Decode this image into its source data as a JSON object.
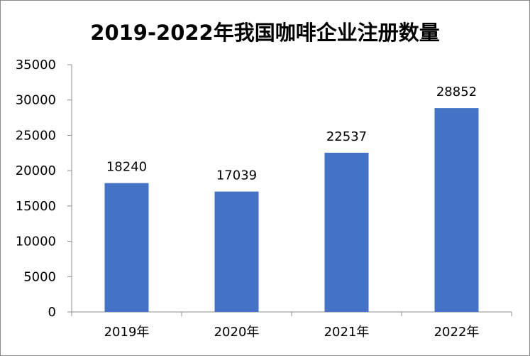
{
  "chart_data": {
    "type": "bar",
    "title": "2019-2022年我国咖啡企业注册数量",
    "categories": [
      "2019年",
      "2020年",
      "2021年",
      "2022年"
    ],
    "values": [
      18240,
      17039,
      22537,
      28852
    ],
    "data_labels": [
      "18240",
      "17039",
      "22537",
      "28852"
    ],
    "y_ticks": [
      "0",
      "5000",
      "10000",
      "15000",
      "20000",
      "25000",
      "30000",
      "35000"
    ],
    "ylim": [
      0,
      35000
    ],
    "bar_color": "#4472c4",
    "grid": false,
    "legend": "none"
  }
}
